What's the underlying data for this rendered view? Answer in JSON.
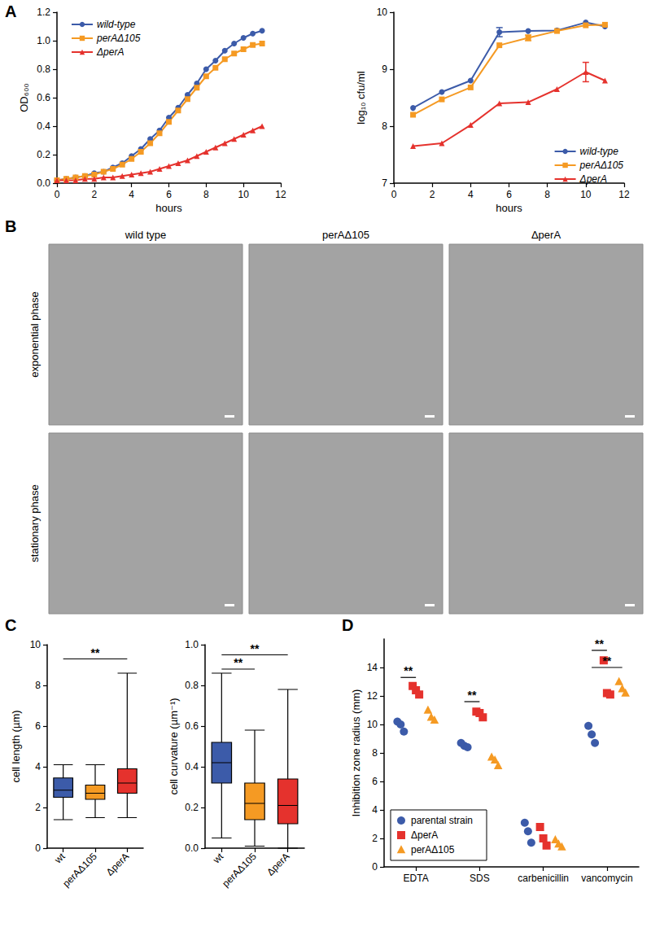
{
  "chart_data": [
    {
      "panel": "A",
      "type": "line",
      "x_label": "hours",
      "y_label": "OD₆₀₀",
      "xlim": [
        0,
        12
      ],
      "xticks": [
        0,
        2,
        4,
        6,
        8,
        10,
        12
      ],
      "ylim": [
        0,
        1.2
      ],
      "yticks": [
        {
          "value": 0,
          "label": "0.0"
        },
        {
          "value": 0.2,
          "label": "0.2"
        },
        {
          "value": 0.4,
          "label": "0.4"
        },
        {
          "value": 0.6,
          "label": "0.6"
        },
        {
          "value": 0.8,
          "label": "0.8"
        },
        {
          "value": 1.0,
          "label": "1.0"
        },
        {
          "value": 1.2,
          "label": "1.2"
        }
      ],
      "grid": false,
      "legend": "upper left",
      "x": [
        0,
        0.5,
        1,
        1.5,
        2,
        2.5,
        3,
        3.5,
        4,
        4.5,
        5,
        5.5,
        6,
        6.5,
        7,
        7.5,
        8,
        8.5,
        9,
        9.5,
        10,
        10.5,
        11
      ],
      "series": [
        {
          "name": "wild-type",
          "color": "#3c5ba9",
          "marker": "circle",
          "values": [
            0.02,
            0.03,
            0.04,
            0.05,
            0.07,
            0.08,
            0.11,
            0.14,
            0.19,
            0.24,
            0.31,
            0.37,
            0.46,
            0.53,
            0.62,
            0.7,
            0.8,
            0.86,
            0.93,
            0.98,
            1.02,
            1.05,
            1.07
          ]
        },
        {
          "name": "perAΔ105",
          "color": "#f59a23",
          "marker": "square",
          "values": [
            0.02,
            0.03,
            0.04,
            0.05,
            0.06,
            0.08,
            0.1,
            0.13,
            0.17,
            0.22,
            0.28,
            0.35,
            0.43,
            0.51,
            0.59,
            0.67,
            0.75,
            0.81,
            0.87,
            0.91,
            0.94,
            0.97,
            0.98
          ]
        },
        {
          "name": "ΔperA",
          "color": "#e5322d",
          "marker": "triangle",
          "values": [
            0.02,
            0.02,
            0.02,
            0.03,
            0.03,
            0.04,
            0.04,
            0.05,
            0.06,
            0.07,
            0.08,
            0.1,
            0.12,
            0.14,
            0.16,
            0.19,
            0.22,
            0.25,
            0.28,
            0.31,
            0.34,
            0.37,
            0.4
          ]
        }
      ]
    },
    {
      "type": "line",
      "x_label": "hours",
      "y_label": "log₁₀ cfu/ml",
      "xlim": [
        0,
        12
      ],
      "xticks": [
        0,
        2,
        4,
        6,
        8,
        10,
        12
      ],
      "ylim": [
        7,
        10
      ],
      "yticks": [
        7,
        8,
        9,
        10
      ],
      "grid": false,
      "legend": "lower right",
      "x": [
        1,
        2.5,
        4,
        5.5,
        7,
        8.5,
        10,
        11
      ],
      "series": [
        {
          "name": "wild-type",
          "color": "#3c5ba9",
          "marker": "circle",
          "values": [
            8.32,
            8.6,
            8.8,
            9.65,
            9.67,
            9.68,
            9.82,
            9.75
          ],
          "errors": [
            null,
            null,
            null,
            0.08,
            null,
            null,
            null,
            null
          ]
        },
        {
          "name": "perAΔ105",
          "color": "#f59a23",
          "marker": "square",
          "values": [
            8.2,
            8.47,
            8.68,
            9.42,
            9.55,
            9.67,
            9.77,
            9.78
          ],
          "errors": [
            null,
            null,
            null,
            null,
            0.05,
            null,
            null,
            null
          ]
        },
        {
          "name": "ΔperA",
          "color": "#e5322d",
          "marker": "triangle",
          "values": [
            7.65,
            7.7,
            8.02,
            8.4,
            8.42,
            8.65,
            8.95,
            8.8
          ],
          "errors": [
            null,
            null,
            null,
            null,
            null,
            null,
            0.17,
            null
          ]
        }
      ]
    },
    {
      "panel": "B",
      "type": "images",
      "categories": [
        "wild type",
        "perAΔ105",
        "ΔperA"
      ],
      "rows": [
        "exponential phase",
        "stationary phase"
      ]
    },
    {
      "panel": "C",
      "type": "boxplot",
      "y_label": "cell length (µm)",
      "categories": [
        "wt",
        "perAΔ105",
        "ΔperA"
      ],
      "colors": [
        "#3c5ba9",
        "#f59a23",
        "#e5322d"
      ],
      "values": [
        [
          1.4,
          2.5,
          2.85,
          3.45,
          4.1
        ],
        [
          1.5,
          2.4,
          2.7,
          3.1,
          4.1
        ],
        [
          1.5,
          2.7,
          3.2,
          3.9,
          8.6
        ]
      ],
      "ylim": [
        0,
        10
      ],
      "yticks": [
        0,
        2,
        4,
        6,
        8,
        10
      ],
      "grid": false,
      "annotations": [
        {
          "from": "wt",
          "to": "ΔperA",
          "y": 9.3,
          "text": "**"
        }
      ]
    },
    {
      "type": "boxplot",
      "y_label": "cell curvature (µm⁻¹)",
      "categories": [
        "wt",
        "perAΔ105",
        "ΔperA"
      ],
      "colors": [
        "#3c5ba9",
        "#f59a23",
        "#e5322d"
      ],
      "values": [
        [
          0.05,
          0.32,
          0.42,
          0.52,
          0.86
        ],
        [
          0.01,
          0.14,
          0.22,
          0.32,
          0.58
        ],
        [
          0.0,
          0.12,
          0.21,
          0.34,
          0.78
        ]
      ],
      "ylim": [
        0,
        1.0
      ],
      "yticks": [
        {
          "value": 0,
          "label": "0.0"
        },
        {
          "value": 0.2,
          "label": "0.2"
        },
        {
          "value": 0.4,
          "label": "0.4"
        },
        {
          "value": 0.6,
          "label": "0.6"
        },
        {
          "value": 0.8,
          "label": "0.8"
        },
        {
          "value": 1.0,
          "label": "1.0"
        }
      ],
      "grid": false,
      "annotations": [
        {
          "from": "wt",
          "to": "perAΔ105",
          "y": 0.88,
          "text": "**"
        },
        {
          "from": "wt",
          "to": "ΔperA",
          "y": 0.95,
          "text": "**"
        }
      ]
    },
    {
      "panel": "D",
      "type": "scatter",
      "y_label": "Inhibition zone radius (mm)",
      "categories": [
        "EDTA",
        "SDS",
        "carbenicillin",
        "vancomycin"
      ],
      "ylim": [
        0,
        16
      ],
      "yticks": [
        0,
        2,
        4,
        6,
        8,
        10,
        12,
        14
      ],
      "grid": false,
      "legend": "lower left",
      "series": [
        {
          "name": "parental strain",
          "color": "#3c5ba9",
          "marker": "circle",
          "values": [
            [
              10.2,
              10.0,
              9.5
            ],
            [
              8.7,
              8.5,
              8.4
            ],
            [
              3.1,
              2.5,
              1.7
            ],
            [
              9.9,
              9.3,
              8.7
            ]
          ]
        },
        {
          "name": "ΔperA",
          "color": "#e5322d",
          "marker": "square",
          "values": [
            [
              12.7,
              12.4,
              12.1
            ],
            [
              10.9,
              10.8,
              10.5
            ],
            [
              2.8,
              2.0,
              1.5
            ],
            [
              14.5,
              12.2,
              12.1
            ]
          ]
        },
        {
          "name": "perAΔ105",
          "color": "#f59a23",
          "marker": "triangle",
          "values": [
            [
              11.0,
              10.5,
              10.3
            ],
            [
              7.7,
              7.5,
              7.1
            ],
            [
              1.9,
              1.6,
              1.4
            ],
            [
              13.0,
              12.5,
              12.2
            ]
          ]
        }
      ],
      "annotations": [
        {
          "category": "EDTA",
          "from": "parental strain",
          "to": "ΔperA",
          "y": 13.3,
          "text": "**"
        },
        {
          "category": "SDS",
          "from": "parental strain",
          "to": "ΔperA",
          "y": 11.6,
          "text": "**"
        },
        {
          "category": "vancomycin",
          "from": "parental strain",
          "to": "ΔperA",
          "y": 15.2,
          "text": "**"
        },
        {
          "category": "vancomycin",
          "from": "parental strain",
          "to": "perAΔ105",
          "y": 14.0,
          "text": "**"
        }
      ]
    }
  ]
}
